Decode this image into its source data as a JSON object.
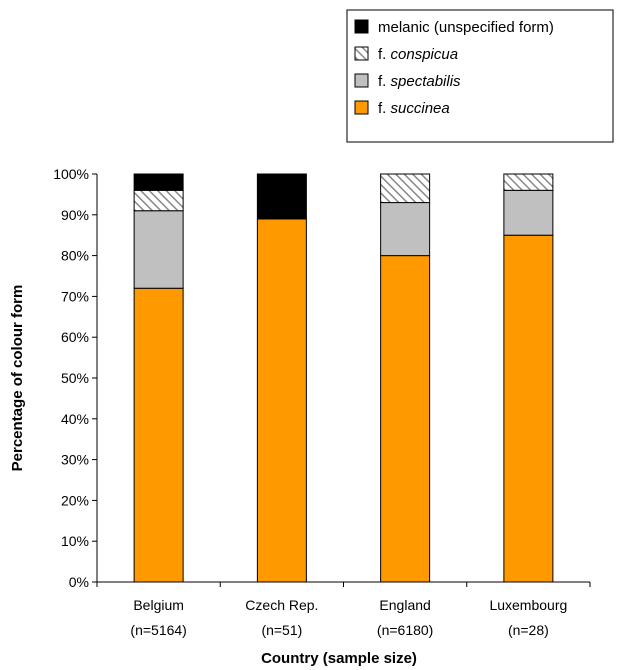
{
  "chart_data": {
    "type": "bar",
    "stacked": true,
    "categories": [
      "Belgium",
      "Czech Rep.",
      "England",
      "Luxembourg"
    ],
    "category_sublabels": [
      "(n=5164)",
      "(n=51)",
      "(n=6180)",
      "(n=28)"
    ],
    "series": [
      {
        "name_prefix": "f. ",
        "name": "succinea",
        "pattern": "solid",
        "color": "#FF9900",
        "values": [
          72,
          89,
          80,
          85
        ]
      },
      {
        "name_prefix": "f. ",
        "name": "spectabilis",
        "pattern": "solid",
        "color": "#C0C0C0",
        "values": [
          19,
          0,
          13,
          11
        ]
      },
      {
        "name_prefix": "f. ",
        "name": "conspicua",
        "pattern": "hatched",
        "color": "#888888",
        "values": [
          5,
          0,
          7,
          4
        ]
      },
      {
        "name_prefix": "",
        "name": "melanic (unspecified form)",
        "pattern": "solid",
        "color": "#000000",
        "values": [
          4,
          11,
          0,
          0
        ]
      }
    ],
    "legend_order": [
      3,
      2,
      1,
      0
    ],
    "xlabel": "Country (sample size)",
    "ylabel": "Percentage of colour form",
    "ylim": [
      0,
      100
    ],
    "yticks": [
      "0%",
      "10%",
      "20%",
      "30%",
      "40%",
      "50%",
      "60%",
      "70%",
      "80%",
      "90%",
      "100%"
    ],
    "grid": false,
    "legend_position": "top-right"
  }
}
